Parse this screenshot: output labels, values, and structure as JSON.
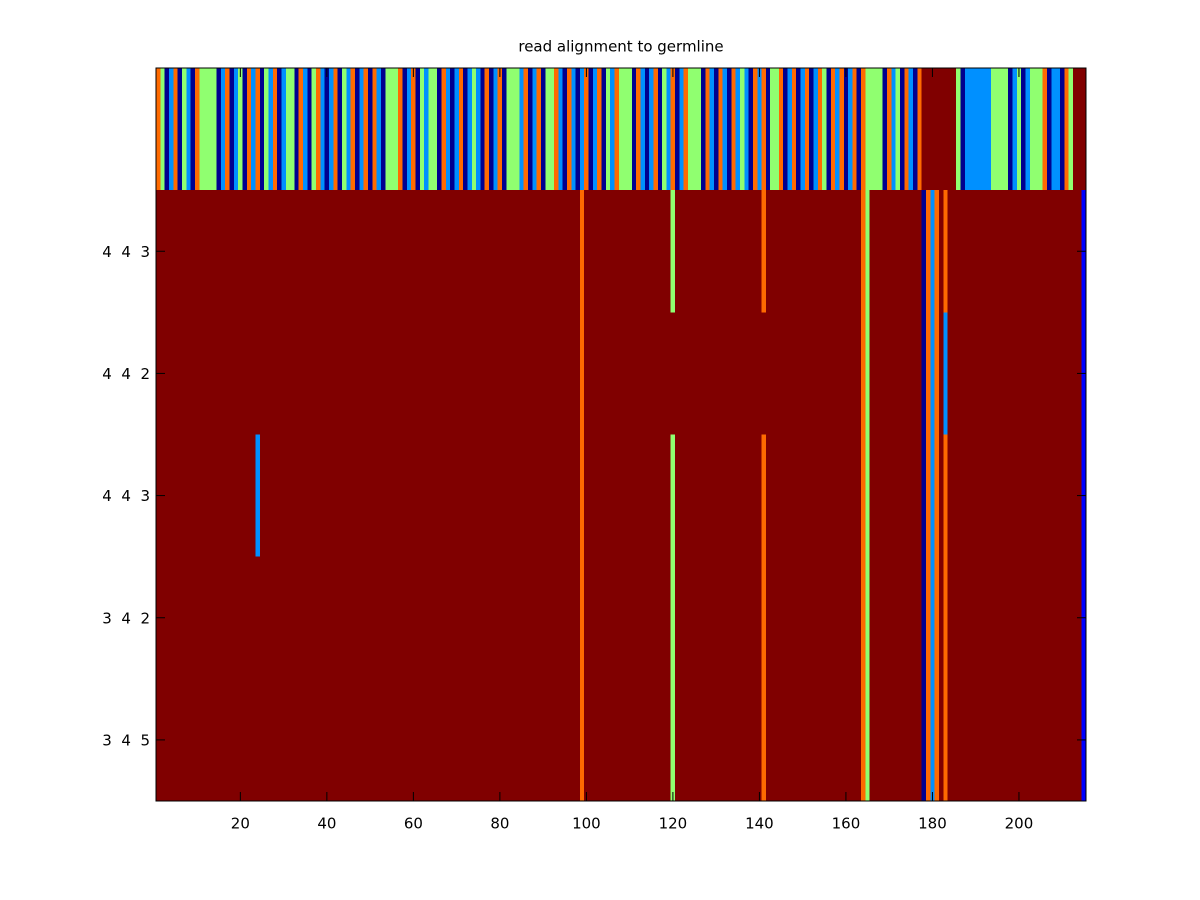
{
  "chart_data": {
    "type": "heatmap",
    "title": "read alignment to germline",
    "xlim": [
      0.5,
      215.5
    ],
    "xticks": [
      20,
      40,
      60,
      80,
      100,
      120,
      140,
      160,
      180,
      200
    ],
    "ylim": [
      0.5,
      6.5
    ],
    "y_reversed": true,
    "yticks": [
      {
        "value": 2,
        "label": "4  4  3"
      },
      {
        "value": 3,
        "label": "4  4  2"
      },
      {
        "value": 4,
        "label": "4  4  3"
      },
      {
        "value": 5,
        "label": "3  4  2"
      },
      {
        "value": 6,
        "label": "3  4  5"
      }
    ],
    "colors": [
      "#00008f",
      "#0000ff",
      "#0090ff",
      "#90ff70",
      "#ff6a00",
      "#800000"
    ],
    "z": [
      [
        4,
        3,
        0,
        2,
        4,
        0,
        3,
        2,
        0,
        4,
        3,
        3,
        3,
        3,
        0,
        2,
        4,
        0,
        2,
        3,
        0,
        4,
        2,
        4,
        0,
        3,
        2,
        4,
        0,
        2,
        3,
        3,
        0,
        4,
        2,
        0,
        3,
        4,
        2,
        0,
        2,
        4,
        0,
        3,
        2,
        4,
        0,
        2,
        4,
        0,
        4,
        2,
        0,
        3,
        3,
        3,
        4,
        0,
        2,
        4,
        0,
        3,
        2,
        3,
        3,
        0,
        4,
        2,
        0,
        2,
        4,
        0,
        2,
        3,
        2,
        0,
        4,
        0,
        2,
        4,
        0,
        3,
        3,
        3,
        2,
        4,
        0,
        2,
        4,
        0,
        3,
        3,
        4,
        2,
        0,
        4,
        2,
        0,
        2,
        4,
        0,
        2,
        4,
        0,
        3,
        2,
        4,
        3,
        3,
        3,
        0,
        4,
        2,
        0,
        2,
        4,
        0,
        3,
        2,
        4,
        0,
        2,
        4,
        3,
        3,
        3,
        0,
        4,
        2,
        0,
        4,
        2,
        0,
        4,
        2,
        3,
        2,
        0,
        4,
        2,
        4,
        0,
        3,
        3,
        4,
        0,
        2,
        4,
        0,
        2,
        4,
        0,
        2,
        4,
        3,
        0,
        4,
        2,
        4,
        0,
        2,
        4,
        0,
        4,
        3,
        3,
        3,
        3,
        0,
        4,
        2,
        3,
        0,
        4,
        2,
        0,
        4,
        5,
        5,
        5,
        5,
        5,
        5,
        5,
        5,
        3,
        0,
        2,
        2,
        2,
        2,
        2,
        2,
        3,
        3,
        3,
        3,
        0,
        2,
        3,
        0,
        2,
        3,
        3,
        3,
        4,
        0,
        2,
        2,
        0,
        4,
        3,
        5,
        5,
        5
      ],
      [
        5,
        5,
        5,
        5,
        5,
        5,
        5,
        5,
        5,
        5,
        5,
        5,
        5,
        5,
        5,
        5,
        5,
        5,
        5,
        5,
        5,
        5,
        5,
        5,
        5,
        5,
        5,
        5,
        5,
        5,
        5,
        5,
        5,
        5,
        5,
        5,
        5,
        5,
        5,
        5,
        5,
        5,
        5,
        5,
        5,
        5,
        5,
        5,
        5,
        5,
        5,
        5,
        5,
        5,
        5,
        5,
        5,
        5,
        5,
        5,
        5,
        5,
        5,
        5,
        5,
        5,
        5,
        5,
        5,
        5,
        5,
        5,
        5,
        5,
        5,
        5,
        5,
        5,
        5,
        5,
        5,
        5,
        5,
        5,
        5,
        5,
        5,
        5,
        5,
        5,
        5,
        5,
        5,
        5,
        5,
        5,
        5,
        5,
        4,
        5,
        5,
        5,
        5,
        5,
        5,
        5,
        5,
        5,
        5,
        5,
        5,
        5,
        5,
        5,
        5,
        5,
        5,
        5,
        5,
        3,
        5,
        5,
        5,
        5,
        5,
        5,
        5,
        5,
        5,
        5,
        5,
        5,
        5,
        5,
        5,
        5,
        5,
        5,
        5,
        5,
        4,
        5,
        5,
        5,
        5,
        5,
        5,
        5,
        5,
        5,
        5,
        5,
        5,
        5,
        5,
        5,
        5,
        5,
        5,
        5,
        5,
        5,
        5,
        4,
        3,
        5,
        5,
        5,
        5,
        5,
        5,
        5,
        5,
        5,
        5,
        5,
        5,
        0,
        4,
        2,
        4,
        5,
        4,
        5,
        5,
        5,
        5,
        5,
        5,
        5,
        5,
        5,
        5,
        5,
        5,
        5,
        5,
        5,
        5,
        5,
        5,
        5,
        5,
        5,
        5,
        5,
        5,
        5,
        5,
        5,
        5,
        5,
        5,
        5,
        1
      ],
      [
        5,
        5,
        5,
        5,
        5,
        5,
        5,
        5,
        5,
        5,
        5,
        5,
        5,
        5,
        5,
        5,
        5,
        5,
        5,
        5,
        5,
        5,
        5,
        5,
        5,
        5,
        5,
        5,
        5,
        5,
        5,
        5,
        5,
        5,
        5,
        5,
        5,
        5,
        5,
        5,
        5,
        5,
        5,
        5,
        5,
        5,
        5,
        5,
        5,
        5,
        5,
        5,
        5,
        5,
        5,
        5,
        5,
        5,
        5,
        5,
        5,
        5,
        5,
        5,
        5,
        5,
        5,
        5,
        5,
        5,
        5,
        5,
        5,
        5,
        5,
        5,
        5,
        5,
        5,
        5,
        5,
        5,
        5,
        5,
        5,
        5,
        5,
        5,
        5,
        5,
        5,
        5,
        5,
        5,
        5,
        5,
        5,
        5,
        4,
        5,
        5,
        5,
        5,
        5,
        5,
        5,
        5,
        5,
        5,
        5,
        5,
        5,
        5,
        5,
        5,
        5,
        5,
        5,
        5,
        5,
        5,
        5,
        5,
        5,
        5,
        5,
        5,
        5,
        5,
        5,
        5,
        5,
        5,
        5,
        5,
        5,
        5,
        5,
        5,
        5,
        5,
        5,
        5,
        5,
        5,
        5,
        5,
        5,
        5,
        5,
        5,
        5,
        5,
        5,
        5,
        5,
        5,
        5,
        5,
        5,
        5,
        5,
        5,
        4,
        3,
        5,
        5,
        5,
        5,
        5,
        5,
        5,
        5,
        5,
        5,
        5,
        5,
        0,
        4,
        2,
        4,
        5,
        2,
        5,
        5,
        5,
        5,
        5,
        5,
        5,
        5,
        5,
        5,
        5,
        5,
        5,
        5,
        5,
        5,
        5,
        5,
        5,
        5,
        5,
        5,
        5,
        5,
        5,
        5,
        5,
        5,
        5,
        5,
        5,
        1
      ],
      [
        5,
        5,
        5,
        5,
        5,
        5,
        5,
        5,
        5,
        5,
        5,
        5,
        5,
        5,
        5,
        5,
        5,
        5,
        5,
        5,
        5,
        5,
        5,
        2,
        5,
        5,
        5,
        5,
        5,
        5,
        5,
        5,
        5,
        5,
        5,
        5,
        5,
        5,
        5,
        5,
        5,
        5,
        5,
        5,
        5,
        5,
        5,
        5,
        5,
        5,
        5,
        5,
        5,
        5,
        5,
        5,
        5,
        5,
        5,
        5,
        5,
        5,
        5,
        5,
        5,
        5,
        5,
        5,
        5,
        5,
        5,
        5,
        5,
        5,
        5,
        5,
        5,
        5,
        5,
        5,
        5,
        5,
        5,
        5,
        5,
        5,
        5,
        5,
        5,
        5,
        5,
        5,
        5,
        5,
        5,
        5,
        5,
        5,
        4,
        5,
        5,
        5,
        5,
        5,
        5,
        5,
        5,
        5,
        5,
        5,
        5,
        5,
        5,
        5,
        5,
        5,
        5,
        5,
        5,
        3,
        5,
        5,
        5,
        5,
        5,
        5,
        5,
        5,
        5,
        5,
        5,
        5,
        5,
        5,
        5,
        5,
        5,
        5,
        5,
        5,
        4,
        5,
        5,
        5,
        5,
        5,
        5,
        5,
        5,
        5,
        5,
        5,
        5,
        5,
        5,
        5,
        5,
        5,
        5,
        5,
        5,
        5,
        5,
        4,
        3,
        5,
        5,
        5,
        5,
        5,
        5,
        5,
        5,
        5,
        5,
        5,
        5,
        0,
        4,
        2,
        4,
        5,
        4,
        5,
        5,
        5,
        5,
        5,
        5,
        5,
        5,
        5,
        5,
        5,
        5,
        5,
        5,
        5,
        5,
        5,
        5,
        5,
        5,
        5,
        5,
        5,
        5,
        5,
        5,
        5,
        5,
        5,
        5,
        5,
        1
      ],
      [
        5,
        5,
        5,
        5,
        5,
        5,
        5,
        5,
        5,
        5,
        5,
        5,
        5,
        5,
        5,
        5,
        5,
        5,
        5,
        5,
        5,
        5,
        5,
        5,
        5,
        5,
        5,
        5,
        5,
        5,
        5,
        5,
        5,
        5,
        5,
        5,
        5,
        5,
        5,
        5,
        5,
        5,
        5,
        5,
        5,
        5,
        5,
        5,
        5,
        5,
        5,
        5,
        5,
        5,
        5,
        5,
        5,
        5,
        5,
        5,
        5,
        5,
        5,
        5,
        5,
        5,
        5,
        5,
        5,
        5,
        5,
        5,
        5,
        5,
        5,
        5,
        5,
        5,
        5,
        5,
        5,
        5,
        5,
        5,
        5,
        5,
        5,
        5,
        5,
        5,
        5,
        5,
        5,
        5,
        5,
        5,
        5,
        5,
        4,
        5,
        5,
        5,
        5,
        5,
        5,
        5,
        5,
        5,
        5,
        5,
        5,
        5,
        5,
        5,
        5,
        5,
        5,
        5,
        5,
        3,
        5,
        5,
        5,
        5,
        5,
        5,
        5,
        5,
        5,
        5,
        5,
        5,
        5,
        5,
        5,
        5,
        5,
        5,
        5,
        5,
        4,
        5,
        5,
        5,
        5,
        5,
        5,
        5,
        5,
        5,
        5,
        5,
        5,
        5,
        5,
        5,
        5,
        5,
        5,
        5,
        5,
        5,
        5,
        4,
        3,
        5,
        5,
        5,
        5,
        5,
        5,
        5,
        5,
        5,
        5,
        5,
        5,
        0,
        4,
        2,
        4,
        5,
        4,
        5,
        5,
        5,
        5,
        5,
        5,
        5,
        5,
        5,
        5,
        5,
        5,
        5,
        5,
        5,
        5,
        5,
        5,
        5,
        5,
        5,
        5,
        5,
        5,
        5,
        5,
        5,
        5,
        5,
        5,
        5,
        1
      ],
      [
        5,
        5,
        5,
        5,
        5,
        5,
        5,
        5,
        5,
        5,
        5,
        5,
        5,
        5,
        5,
        5,
        5,
        5,
        5,
        5,
        5,
        5,
        5,
        5,
        5,
        5,
        5,
        5,
        5,
        5,
        5,
        5,
        5,
        5,
        5,
        5,
        5,
        5,
        5,
        5,
        5,
        5,
        5,
        5,
        5,
        5,
        5,
        5,
        5,
        5,
        5,
        5,
        5,
        5,
        5,
        5,
        5,
        5,
        5,
        5,
        5,
        5,
        5,
        5,
        5,
        5,
        5,
        5,
        5,
        5,
        5,
        5,
        5,
        5,
        5,
        5,
        5,
        5,
        5,
        5,
        5,
        5,
        5,
        5,
        5,
        5,
        5,
        5,
        5,
        5,
        5,
        5,
        5,
        5,
        5,
        5,
        5,
        5,
        4,
        5,
        5,
        5,
        5,
        5,
        5,
        5,
        5,
        5,
        5,
        5,
        5,
        5,
        5,
        5,
        5,
        5,
        5,
        5,
        5,
        3,
        5,
        5,
        5,
        5,
        5,
        5,
        5,
        5,
        5,
        5,
        5,
        5,
        5,
        5,
        5,
        5,
        5,
        5,
        5,
        5,
        4,
        5,
        5,
        5,
        5,
        5,
        5,
        5,
        5,
        5,
        5,
        5,
        5,
        5,
        5,
        5,
        5,
        5,
        5,
        5,
        5,
        5,
        5,
        4,
        3,
        5,
        5,
        5,
        5,
        5,
        5,
        5,
        5,
        5,
        5,
        5,
        5,
        0,
        4,
        2,
        4,
        5,
        4,
        5,
        5,
        5,
        5,
        5,
        5,
        5,
        5,
        5,
        5,
        5,
        5,
        5,
        5,
        5,
        5,
        5,
        5,
        5,
        5,
        5,
        5,
        5,
        5,
        5,
        5,
        5,
        5,
        5,
        5,
        5,
        1
      ]
    ]
  }
}
